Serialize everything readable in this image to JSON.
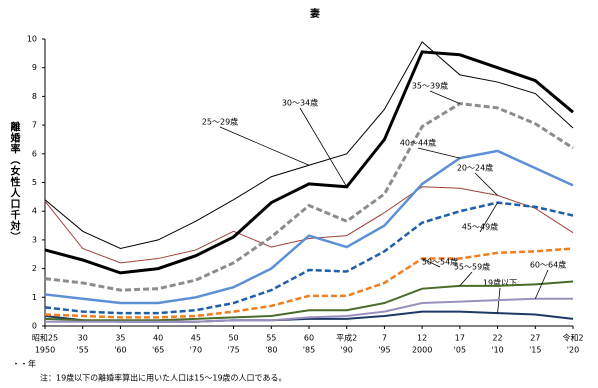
{
  "chart_data": {
    "type": "line",
    "title": "妻",
    "y_label": "離婚率（女性人口千対）",
    "x_unit_label": "・・年",
    "note": "注：19歳以下の離婚率算出に用いた人口は15～19歳の人口である。",
    "categories": [
      "昭和25",
      "30",
      "35",
      "40",
      "45",
      "50",
      "55",
      "60",
      "平成2",
      "7",
      "12",
      "17",
      "22",
      "27",
      "令和2"
    ],
    "categories_western": [
      "1950",
      "'55",
      "'60",
      "'65",
      "'70",
      "'75",
      "'80",
      "'85",
      "'90",
      "'95",
      "2000",
      "'05",
      "'10",
      "'15",
      "'20"
    ],
    "ylim": [
      0,
      10
    ],
    "yticks": [
      0,
      1,
      2,
      3,
      4,
      5,
      6,
      7,
      8,
      9,
      10
    ],
    "series": [
      {
        "name": "19歳以下",
        "color": "#1f3864",
        "width": 2,
        "dash": false,
        "values": [
          0.35,
          0.2,
          0.15,
          0.15,
          0.15,
          0.2,
          0.2,
          0.25,
          0.25,
          0.35,
          0.5,
          0.5,
          0.45,
          0.4,
          0.25
        ]
      },
      {
        "name": "20～24歳",
        "color": "#a0403a",
        "width": 1,
        "dash": false,
        "values": [
          4.35,
          2.7,
          2.2,
          2.35,
          2.65,
          3.3,
          2.75,
          3.05,
          3.15,
          3.95,
          4.85,
          4.8,
          4.55,
          4.1,
          3.25
        ]
      },
      {
        "name": "25～29歳",
        "color": "#000000",
        "width": 1,
        "dash": false,
        "values": [
          4.4,
          3.3,
          2.7,
          3.0,
          3.65,
          4.4,
          5.2,
          5.6,
          6.0,
          7.55,
          9.9,
          8.75,
          8.5,
          8.1,
          6.9
        ]
      },
      {
        "name": "30～34歳",
        "color": "#000000",
        "width": 3,
        "dash": false,
        "values": [
          2.65,
          2.3,
          1.85,
          2.0,
          2.45,
          3.1,
          4.3,
          4.95,
          4.85,
          6.5,
          9.55,
          9.45,
          9.0,
          8.55,
          7.45
        ]
      },
      {
        "name": "35～39歳",
        "color": "#8c8c8c",
        "width": 3,
        "dash": true,
        "values": [
          1.65,
          1.5,
          1.25,
          1.3,
          1.6,
          2.2,
          3.1,
          4.2,
          3.65,
          4.6,
          6.95,
          7.75,
          7.6,
          7.05,
          6.2
        ]
      },
      {
        "name": "40～44歳",
        "color": "#5b8fd6",
        "width": 2.5,
        "dash": false,
        "values": [
          1.1,
          0.95,
          0.8,
          0.8,
          1.0,
          1.35,
          2.0,
          3.15,
          2.75,
          3.5,
          4.95,
          5.85,
          6.1,
          5.5,
          4.9
        ]
      },
      {
        "name": "45～49歳",
        "color": "#1f5fa8",
        "width": 2.5,
        "dash": true,
        "values": [
          0.65,
          0.5,
          0.45,
          0.45,
          0.55,
          0.8,
          1.25,
          1.95,
          1.9,
          2.6,
          3.6,
          4.0,
          4.3,
          4.15,
          3.85
        ]
      },
      {
        "name": "50～54歳",
        "color": "#f07d1e",
        "width": 2.5,
        "dash": true,
        "values": [
          0.4,
          0.35,
          0.3,
          0.3,
          0.35,
          0.5,
          0.7,
          1.05,
          1.05,
          1.5,
          2.35,
          2.35,
          2.55,
          2.6,
          2.7
        ]
      },
      {
        "name": "55～59歳",
        "color": "#4a6b2a",
        "width": 2,
        "dash": false,
        "values": [
          0.25,
          0.2,
          0.2,
          0.2,
          0.25,
          0.3,
          0.35,
          0.55,
          0.55,
          0.8,
          1.3,
          1.4,
          1.4,
          1.45,
          1.55
        ]
      },
      {
        "name": "60～64歳",
        "color": "#9b8fbf",
        "width": 2,
        "dash": false,
        "values": [
          0.15,
          0.15,
          0.15,
          0.15,
          0.15,
          0.2,
          0.2,
          0.3,
          0.35,
          0.5,
          0.8,
          0.85,
          0.9,
          0.95,
          0.95
        ]
      }
    ]
  }
}
